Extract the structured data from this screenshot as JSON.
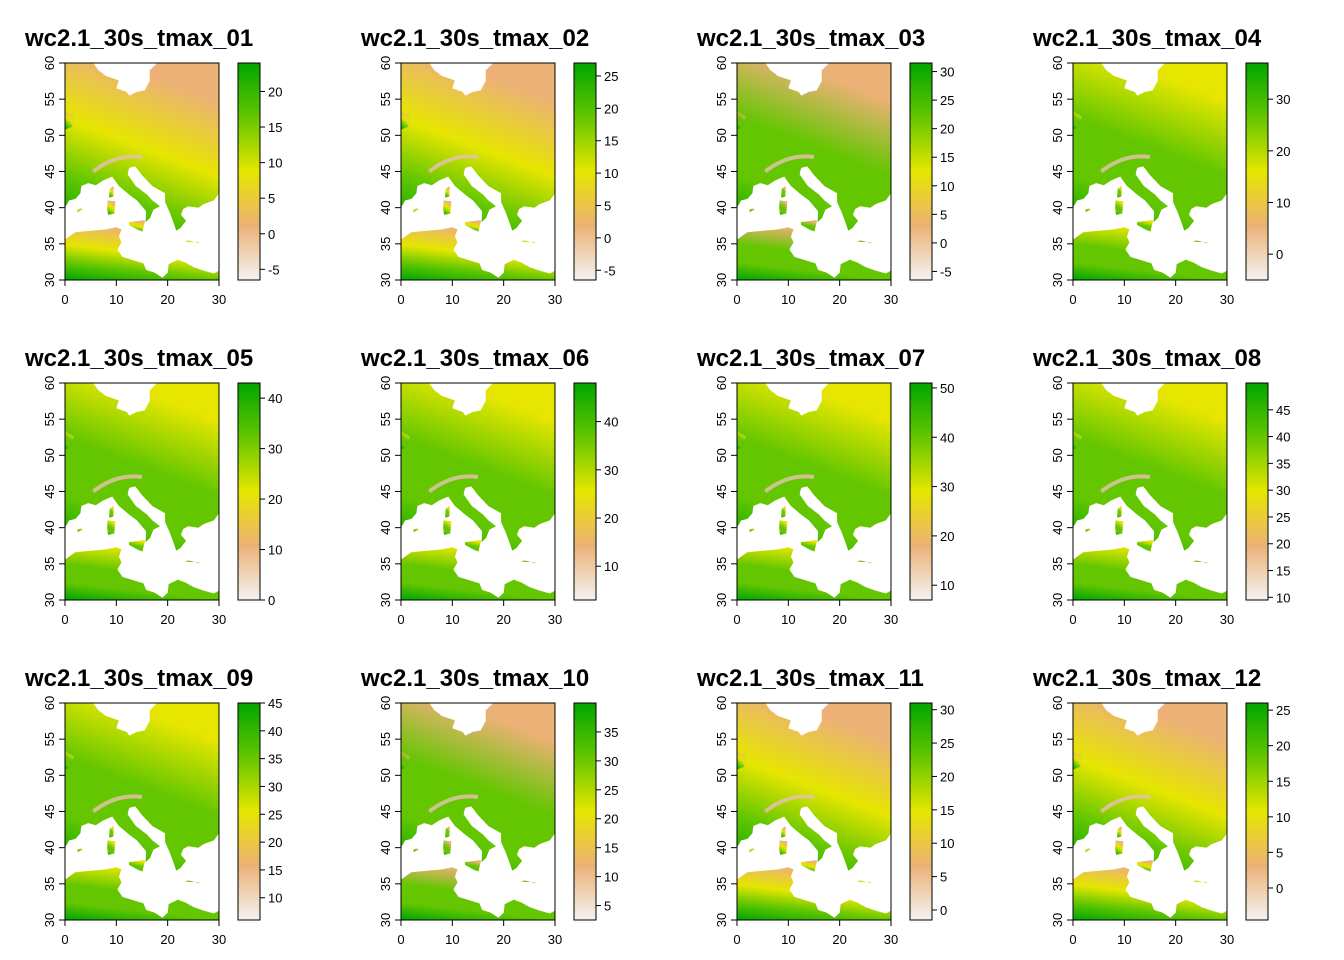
{
  "figure": {
    "panels": [
      {
        "title": "wc2.1_30s_tmax_01",
        "legend": {
          "ticks": [
            -5,
            0,
            5,
            10,
            15,
            20
          ],
          "min": -6.5,
          "max": 24
        }
      },
      {
        "title": "wc2.1_30s_tmax_02",
        "legend": {
          "ticks": [
            -5,
            0,
            5,
            10,
            15,
            20,
            25
          ],
          "min": -6.5,
          "max": 27
        }
      },
      {
        "title": "wc2.1_30s_tmax_03",
        "legend": {
          "ticks": [
            -5,
            0,
            5,
            10,
            15,
            20,
            25,
            30
          ],
          "min": -6.5,
          "max": 31.5
        }
      },
      {
        "title": "wc2.1_30s_tmax_04",
        "legend": {
          "ticks": [
            0,
            10,
            20,
            30
          ],
          "min": -5,
          "max": 37
        }
      },
      {
        "title": "wc2.1_30s_tmax_05",
        "legend": {
          "ticks": [
            0,
            10,
            20,
            30,
            40
          ],
          "min": 0,
          "max": 43
        }
      },
      {
        "title": "wc2.1_30s_tmax_06",
        "legend": {
          "ticks": [
            10,
            20,
            30,
            40
          ],
          "min": 3,
          "max": 48
        }
      },
      {
        "title": "wc2.1_30s_tmax_07",
        "legend": {
          "ticks": [
            10,
            20,
            30,
            40,
            50
          ],
          "min": 7,
          "max": 51
        }
      },
      {
        "title": "wc2.1_30s_tmax_08",
        "legend": {
          "ticks": [
            10,
            15,
            20,
            25,
            30,
            35,
            40,
            45
          ],
          "min": 9.5,
          "max": 50
        }
      },
      {
        "title": "wc2.1_30s_tmax_09",
        "legend": {
          "ticks": [
            10,
            15,
            20,
            25,
            30,
            35,
            40,
            45
          ],
          "min": 6,
          "max": 45
        }
      },
      {
        "title": "wc2.1_30s_tmax_10",
        "legend": {
          "ticks": [
            5,
            10,
            15,
            20,
            25,
            30,
            35
          ],
          "min": 2.5,
          "max": 40
        }
      },
      {
        "title": "wc2.1_30s_tmax_11",
        "legend": {
          "ticks": [
            0,
            5,
            10,
            15,
            20,
            25,
            30
          ],
          "min": -1.5,
          "max": 31
        }
      },
      {
        "title": "wc2.1_30s_tmax_12",
        "legend": {
          "ticks": [
            0,
            5,
            10,
            15,
            20,
            25
          ],
          "min": -4.5,
          "max": 26
        }
      }
    ],
    "x_axis": {
      "ticks": [
        0,
        10,
        20,
        30
      ],
      "min": 0,
      "max": 30
    },
    "y_axis": {
      "ticks": [
        30,
        35,
        40,
        45,
        50,
        55,
        60
      ],
      "min": 30,
      "max": 60
    },
    "colors": {
      "low": "#F2F2F2",
      "mid_low": "#ECB176",
      "mid": "#E6E600",
      "mid_high": "#63C600",
      "high": "#00A600",
      "sea": "#FFFFFF"
    }
  }
}
